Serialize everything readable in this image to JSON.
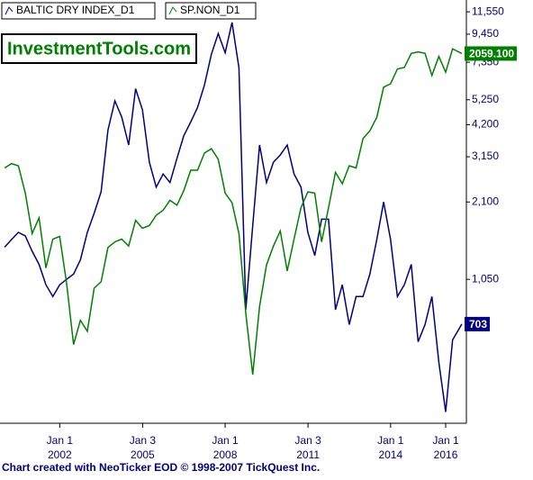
{
  "chart_data": {
    "type": "line",
    "watermark": "InvestmentTools.com",
    "footer": "Chart created with NeoTicker EOD © 1998-2007 TickQuest Inc.",
    "log_scale": true,
    "x": [
      "2000-01",
      "2000-04",
      "2000-07",
      "2000-10",
      "2001-01",
      "2001-04",
      "2001-07",
      "2001-10",
      "2002-01",
      "2002-04",
      "2002-07",
      "2002-10",
      "2003-01",
      "2003-04",
      "2003-07",
      "2003-10",
      "2004-01",
      "2004-04",
      "2004-07",
      "2004-10",
      "2005-01",
      "2005-04",
      "2005-07",
      "2005-10",
      "2006-01",
      "2006-04",
      "2006-07",
      "2006-10",
      "2007-01",
      "2007-04",
      "2007-07",
      "2007-10",
      "2008-01",
      "2008-04",
      "2008-07",
      "2008-10",
      "2009-01",
      "2009-04",
      "2009-07",
      "2009-10",
      "2010-01",
      "2010-04",
      "2010-07",
      "2010-10",
      "2011-01",
      "2011-04",
      "2011-07",
      "2011-10",
      "2012-01",
      "2012-04",
      "2012-07",
      "2012-10",
      "2013-01",
      "2013-04",
      "2013-07",
      "2013-10",
      "2014-01",
      "2014-04",
      "2014-07",
      "2014-10",
      "2015-01",
      "2015-04",
      "2015-07",
      "2015-10",
      "2016-01",
      "2016-04",
      "2016-08"
    ],
    "xlim": [
      "1999-11-01",
      "2016-10-01"
    ],
    "xticks": [
      {
        "value": "2002-01-01",
        "label": [
          "Jan 1",
          "2002"
        ]
      },
      {
        "value": "2005-01-03",
        "label": [
          "Jan 3",
          "2005"
        ]
      },
      {
        "value": "2008-01-01",
        "label": [
          "Jan 1",
          "2008"
        ]
      },
      {
        "value": "2011-01-03",
        "label": [
          "Jan 3",
          "2011"
        ]
      },
      {
        "value": "2014-01-01",
        "label": [
          "Jan 1",
          "2014"
        ]
      },
      {
        "value": "2016-01-01",
        "label": [
          "Jan 1",
          "2016"
        ]
      }
    ],
    "ylim": [
      289,
      12840
    ],
    "yticks": [
      {
        "value": 11550,
        "label": "11,550"
      },
      {
        "value": 9450,
        "label": "9,450"
      },
      {
        "value": 7350,
        "label": "7,350"
      },
      {
        "value": 5250,
        "label": "5,250"
      },
      {
        "value": 4200,
        "label": "4,200"
      },
      {
        "value": 3150,
        "label": "3,150"
      },
      {
        "value": 2100,
        "label": "2,100"
      },
      {
        "value": 1050,
        "label": "1,050"
      }
    ],
    "y2lim": [
      634,
      2442
    ],
    "series": [
      {
        "name": "BALTIC DRY INDEX_D1",
        "color": "#000080",
        "values": [
          1400,
          1500,
          1600,
          1550,
          1350,
          1200,
          1000,
          900,
          1000,
          1050,
          1100,
          1250,
          1600,
          1900,
          2300,
          4000,
          5200,
          4500,
          3500,
          5800,
          4800,
          3000,
          2400,
          2700,
          2500,
          3100,
          3800,
          4300,
          4900,
          6000,
          7900,
          9500,
          8000,
          10500,
          7000,
          800,
          1700,
          3500,
          2500,
          3000,
          3200,
          3500,
          2700,
          2400,
          1600,
          1300,
          1800,
          1800,
          800,
          1000,
          700,
          900,
          900,
          1100,
          1500,
          2100,
          1500,
          900,
          1000,
          1200,
          600,
          700,
          900,
          500,
          320,
          610,
          703
        ]
      },
      {
        "name": "SP.NON_D1",
        "color": "#008000",
        "axis": "y2",
        "values": [
          1430,
          1450,
          1440,
          1320,
          1160,
          1220,
          1040,
          1140,
          1150,
          990,
          815,
          880,
          850,
          975,
          995,
          1110,
          1130,
          1140,
          1115,
          1210,
          1180,
          1190,
          1230,
          1250,
          1290,
          1270,
          1330,
          1420,
          1420,
          1500,
          1520,
          1470,
          1320,
          1280,
          1160,
          900,
          740,
          920,
          1050,
          1115,
          1170,
          1030,
          1140,
          1260,
          1325,
          1320,
          1130,
          1260,
          1410,
          1360,
          1440,
          1430,
          1570,
          1610,
          1680,
          1850,
          1870,
          1960,
          1970,
          2060,
          2070,
          2060,
          1920,
          2040,
          1940,
          2090,
          2059.1
        ],
        "value_labels": [
          null,
          null,
          null,
          null,
          null,
          null,
          null,
          null,
          null,
          null,
          null,
          null,
          null,
          null,
          null,
          null,
          null,
          null,
          null,
          null,
          null,
          null,
          null,
          null,
          null,
          null,
          null,
          null,
          null,
          null,
          null,
          null,
          null,
          null,
          null,
          null,
          null,
          null,
          null,
          null,
          null,
          null,
          null,
          null,
          null,
          null,
          null,
          null,
          null,
          null,
          null,
          null,
          null,
          null,
          null,
          null,
          null,
          null,
          null,
          null,
          null,
          null,
          null,
          null,
          null,
          null,
          "2059.100"
        ]
      }
    ]
  }
}
